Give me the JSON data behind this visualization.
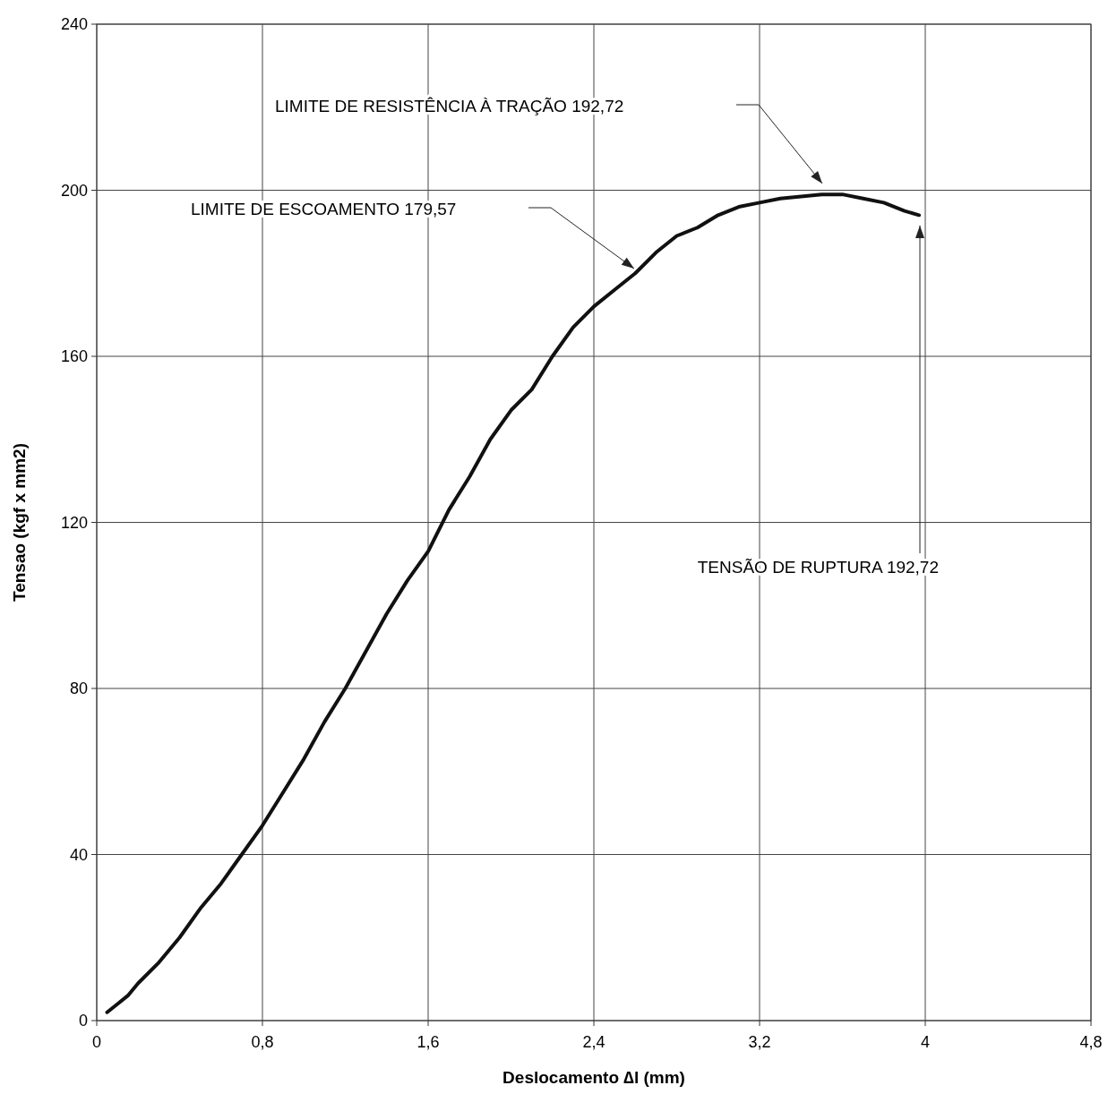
{
  "chart_data": {
    "type": "line",
    "xlabel": "Deslocamento ∆l (mm)",
    "ylabel": "Tensao (kgf x mm2)",
    "xlim": [
      0,
      4.8
    ],
    "ylim": [
      0,
      240
    ],
    "xticks": [
      0,
      {
        "value": 0.8,
        "label": "0,8"
      },
      {
        "value": 1.6,
        "label": "1,6"
      },
      {
        "value": 2.4,
        "label": "2,4"
      },
      {
        "value": 3.2,
        "label": "3,2"
      },
      4,
      {
        "value": 4.8,
        "label": "4,8"
      }
    ],
    "yticks": [
      0,
      40,
      80,
      120,
      160,
      200,
      240
    ],
    "grid": true,
    "line_style": "solid",
    "marker": "none",
    "series": [
      {
        "color": "#111111",
        "x": [
          0.05,
          0.1,
          0.15,
          0.2,
          0.3,
          0.4,
          0.5,
          0.6,
          0.7,
          0.8,
          0.9,
          1.0,
          1.1,
          1.2,
          1.3,
          1.4,
          1.5,
          1.6,
          1.7,
          1.8,
          1.9,
          2.0,
          2.1,
          2.2,
          2.3,
          2.4,
          2.5,
          2.6,
          2.7,
          2.8,
          2.9,
          3.0,
          3.1,
          3.2,
          3.3,
          3.4,
          3.5,
          3.6,
          3.7,
          3.8,
          3.9,
          3.97
        ],
        "values": [
          2,
          4,
          6,
          9,
          14,
          20,
          27,
          33,
          40,
          47,
          55,
          63,
          72,
          80,
          89,
          98,
          106,
          113,
          123,
          131,
          140,
          147,
          152,
          160,
          167,
          172,
          176,
          180,
          185,
          189,
          191,
          194,
          196,
          197,
          198,
          198.5,
          199,
          199,
          198,
          197,
          195,
          194
        ]
      }
    ],
    "annotations": [
      "LIMITE DE RESISTÊNCIA À TRAÇÃO 192,72",
      "LIMITE DE ESCOAMENTO 179,57",
      "TENSÃO DE RUPTURA 192,72"
    ]
  }
}
